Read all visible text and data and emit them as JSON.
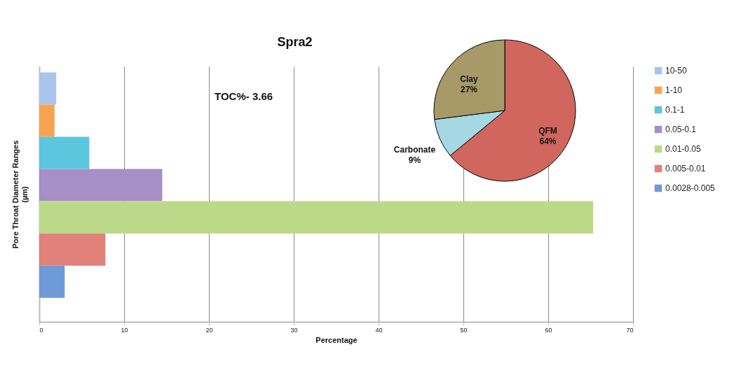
{
  "chart_data": [
    {
      "type": "bar",
      "orientation": "horizontal",
      "title": "Spra2",
      "xlabel": "Percentage",
      "ylabel": "Pore Throat Diameter Ranges (µm)",
      "annotations": [
        "TOC%- 3.66"
      ],
      "categories": [
        null
      ],
      "series": [
        {
          "name": "10-50",
          "color": "#a9c4ea",
          "values": [
            2.0
          ]
        },
        {
          "name": "1-10",
          "color": "#f9a352",
          "values": [
            1.8
          ]
        },
        {
          "name": "0.1-1",
          "color": "#5cc6de",
          "values": [
            5.9
          ]
        },
        {
          "name": "0.05-0.1",
          "color": "#a58fc6",
          "values": [
            14.5
          ]
        },
        {
          "name": "0.01-0.05",
          "color": "#bcd98a",
          "values": [
            65.3
          ]
        },
        {
          "name": "0.005-0.01",
          "color": "#e2807a",
          "values": [
            7.8
          ]
        },
        {
          "name": "0.0028-0.005",
          "color": "#6f9ad8",
          "values": [
            3.0
          ]
        }
      ],
      "xlim": [
        0,
        70
      ],
      "xticks": [
        0,
        10,
        20,
        30,
        40,
        50,
        60,
        70
      ],
      "grid": "x",
      "legend": "right"
    },
    {
      "type": "pie",
      "categories": [
        "QFM",
        "Carbonate",
        "Clay"
      ],
      "values": [
        64,
        9,
        27
      ],
      "value_labels": [
        "64%",
        "9%",
        "27%"
      ],
      "colors": [
        "#d0665e",
        "#a6d8e4",
        "#a89a68"
      ]
    }
  ]
}
